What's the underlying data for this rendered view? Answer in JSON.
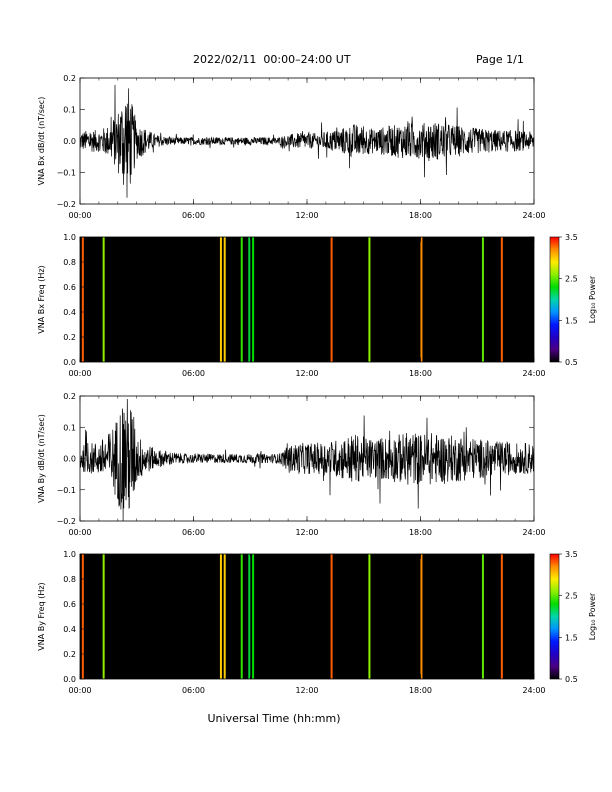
{
  "header": {
    "title": "2022/02/11  00:00–24:00 UT",
    "page": "Page 1/1"
  },
  "xlabel": "Universal Time (hh:mm)",
  "chart_data": [
    {
      "type": "line",
      "ylabel": "VNA Bx dB/dt (nT/sec)",
      "xlim": [
        0,
        24
      ],
      "ylim": [
        -0.2,
        0.2
      ],
      "x_ticks": [
        "00:00",
        "06:00",
        "12:00",
        "18:00",
        "24:00"
      ],
      "y_ticks": [
        "0.2",
        "0.1",
        "0.0",
        "−0.1",
        "−0.2"
      ],
      "y_tick_values": [
        0.2,
        0.1,
        0.0,
        -0.1,
        -0.2
      ],
      "series": [
        {
          "color": "#000000",
          "x": [
            0,
            0.5,
            1,
            1.5,
            2,
            2.25,
            2.5,
            2.75,
            3,
            3.5,
            4,
            4.5,
            5,
            5.5,
            6,
            6.5,
            7,
            7.5,
            8,
            8.5,
            9,
            9.5,
            10,
            10.5,
            11,
            11.5,
            12,
            12.5,
            13,
            13.5,
            14,
            14.5,
            15,
            15.5,
            16,
            16.5,
            17,
            17.5,
            18,
            18.5,
            19,
            19.5,
            20,
            20.5,
            21,
            21.5,
            22,
            22.5,
            23,
            23.5,
            24
          ],
          "envelope": [
            0.03,
            0.035,
            0.035,
            0.05,
            0.1,
            0.15,
            0.2,
            0.12,
            0.06,
            0.04,
            0.02,
            0.015,
            0.012,
            0.012,
            0.012,
            0.012,
            0.012,
            0.012,
            0.012,
            0.012,
            0.012,
            0.012,
            0.012,
            0.012,
            0.02,
            0.025,
            0.025,
            0.025,
            0.03,
            0.035,
            0.045,
            0.055,
            0.045,
            0.04,
            0.045,
            0.05,
            0.055,
            0.06,
            0.055,
            0.065,
            0.06,
            0.055,
            0.05,
            0.045,
            0.04,
            0.04,
            0.035,
            0.035,
            0.035,
            0.03,
            0.03
          ]
        }
      ]
    },
    {
      "type": "heatmap",
      "ylabel": "VNA Bx Freq (Hz)",
      "xlim": [
        0,
        24
      ],
      "ylim": [
        0,
        1
      ],
      "x_ticks": [
        "00:00",
        "06:00",
        "12:00",
        "18:00",
        "24:00"
      ],
      "y_ticks": [
        "1.0",
        "0.8",
        "0.6",
        "0.4",
        "0.2",
        "0.0"
      ],
      "y_tick_values": [
        1.0,
        0.8,
        0.6,
        0.4,
        0.2,
        0.0
      ],
      "background": "#000000",
      "events": [
        {
          "t": 0.15,
          "power": 3.3
        },
        {
          "t": 1.25,
          "power": 2.6
        },
        {
          "t": 7.45,
          "power": 3.0
        },
        {
          "t": 7.65,
          "power": 3.0
        },
        {
          "t": 8.55,
          "power": 2.4
        },
        {
          "t": 8.95,
          "power": 2.2
        },
        {
          "t": 9.15,
          "power": 2.3
        },
        {
          "t": 13.3,
          "power": 3.3
        },
        {
          "t": 15.3,
          "power": 2.6
        },
        {
          "t": 18.05,
          "power": 3.2
        },
        {
          "t": 21.3,
          "power": 2.5
        },
        {
          "t": 22.3,
          "power": 3.3
        }
      ],
      "colorbar": {
        "label": "Log₁₀ Power",
        "range": [
          0.5,
          3.5
        ],
        "ticks": [
          "3.5",
          "2.5",
          "1.5",
          "0.5"
        ],
        "tick_values": [
          3.5,
          2.5,
          1.5,
          0.5
        ]
      }
    },
    {
      "type": "line",
      "ylabel": "VNA By dB/dt (nT/sec)",
      "xlim": [
        0,
        24
      ],
      "ylim": [
        -0.2,
        0.2
      ],
      "x_ticks": [
        "00:00",
        "06:00",
        "12:00",
        "18:00",
        "24:00"
      ],
      "y_ticks": [
        "0.2",
        "0.1",
        "0.0",
        "−0.1",
        "−0.2"
      ],
      "y_tick_values": [
        0.2,
        0.1,
        0.0,
        -0.1,
        -0.2
      ],
      "series": [
        {
          "color": "#000000",
          "x": [
            0,
            0.5,
            1,
            1.5,
            2,
            2.25,
            2.5,
            2.75,
            3,
            3.5,
            4,
            4.5,
            5,
            5.5,
            6,
            6.5,
            7,
            7.5,
            8,
            8.5,
            9,
            9.5,
            10,
            10.5,
            11,
            11.5,
            12,
            12.5,
            13,
            13.5,
            14,
            14.5,
            15,
            15.5,
            16,
            16.5,
            17,
            17.5,
            18,
            18.5,
            19,
            19.5,
            20,
            20.5,
            21,
            21.5,
            22,
            22.5,
            23,
            23.5,
            24
          ],
          "envelope": [
            0.04,
            0.05,
            0.055,
            0.08,
            0.14,
            0.2,
            0.2,
            0.18,
            0.08,
            0.05,
            0.03,
            0.025,
            0.02,
            0.015,
            0.015,
            0.015,
            0.015,
            0.015,
            0.015,
            0.015,
            0.015,
            0.015,
            0.015,
            0.015,
            0.04,
            0.05,
            0.05,
            0.05,
            0.055,
            0.06,
            0.07,
            0.08,
            0.07,
            0.065,
            0.07,
            0.075,
            0.08,
            0.09,
            0.08,
            0.085,
            0.08,
            0.075,
            0.075,
            0.07,
            0.065,
            0.06,
            0.055,
            0.055,
            0.05,
            0.05,
            0.05
          ]
        }
      ]
    },
    {
      "type": "heatmap",
      "ylabel": "VNA By Freq (Hz)",
      "xlim": [
        0,
        24
      ],
      "ylim": [
        0,
        1
      ],
      "x_ticks": [
        "00:00",
        "06:00",
        "12:00",
        "18:00",
        "24:00"
      ],
      "y_ticks": [
        "1.0",
        "0.8",
        "0.6",
        "0.4",
        "0.2",
        "0.0"
      ],
      "y_tick_values": [
        1.0,
        0.8,
        0.6,
        0.4,
        0.2,
        0.0
      ],
      "background": "#000000",
      "events": [
        {
          "t": 0.15,
          "power": 3.3
        },
        {
          "t": 1.25,
          "power": 2.6
        },
        {
          "t": 7.45,
          "power": 3.0
        },
        {
          "t": 7.65,
          "power": 3.0
        },
        {
          "t": 8.55,
          "power": 2.4
        },
        {
          "t": 8.95,
          "power": 2.2
        },
        {
          "t": 9.15,
          "power": 2.3
        },
        {
          "t": 13.3,
          "power": 3.3
        },
        {
          "t": 15.3,
          "power": 2.6
        },
        {
          "t": 18.05,
          "power": 3.2
        },
        {
          "t": 21.3,
          "power": 2.5
        },
        {
          "t": 22.3,
          "power": 3.3
        }
      ],
      "colorbar": {
        "label": "Log₁₀ Power",
        "range": [
          0.5,
          3.5
        ],
        "ticks": [
          "3.5",
          "2.5",
          "1.5",
          "0.5"
        ],
        "tick_values": [
          3.5,
          2.5,
          1.5,
          0.5
        ]
      }
    }
  ]
}
